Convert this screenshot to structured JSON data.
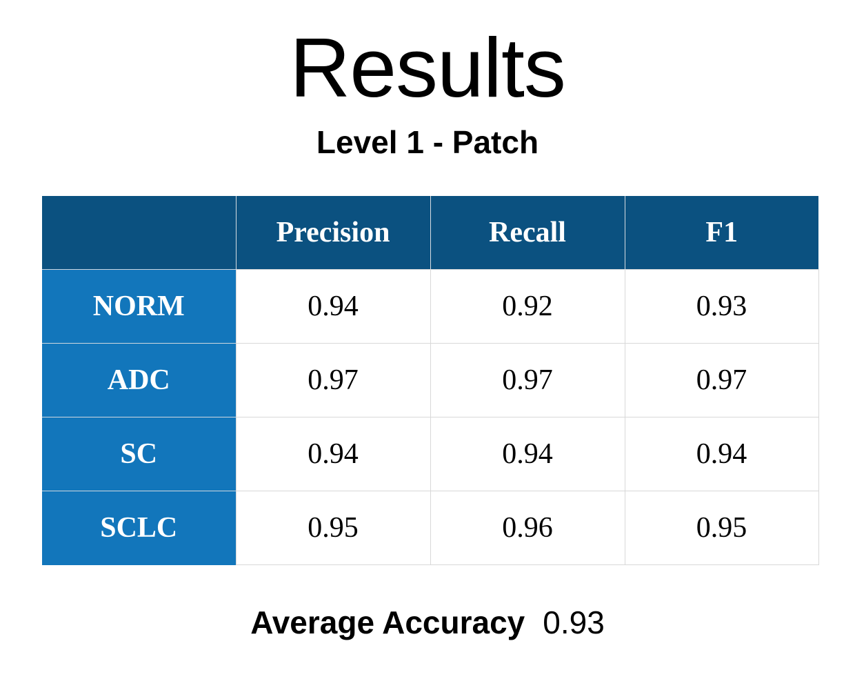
{
  "title": "Results",
  "subtitle": "Level 1 - Patch",
  "table": {
    "corner": "",
    "columns": [
      "Precision",
      "Recall",
      "F1"
    ],
    "rows": [
      {
        "label": "NORM",
        "values": [
          "0.94",
          "0.92",
          "0.93"
        ]
      },
      {
        "label": "ADC",
        "values": [
          "0.97",
          "0.97",
          "0.97"
        ]
      },
      {
        "label": "SC",
        "values": [
          "0.94",
          "0.94",
          "0.94"
        ]
      },
      {
        "label": "SCLC",
        "values": [
          "0.95",
          "0.96",
          "0.95"
        ]
      }
    ]
  },
  "footer": {
    "label": "Average Accuracy",
    "value": "0.93"
  },
  "colors": {
    "header_background": "#0b5180",
    "row_header_background": "#1276bb",
    "header_text": "#ffffff",
    "cell_background": "#ffffff"
  }
}
